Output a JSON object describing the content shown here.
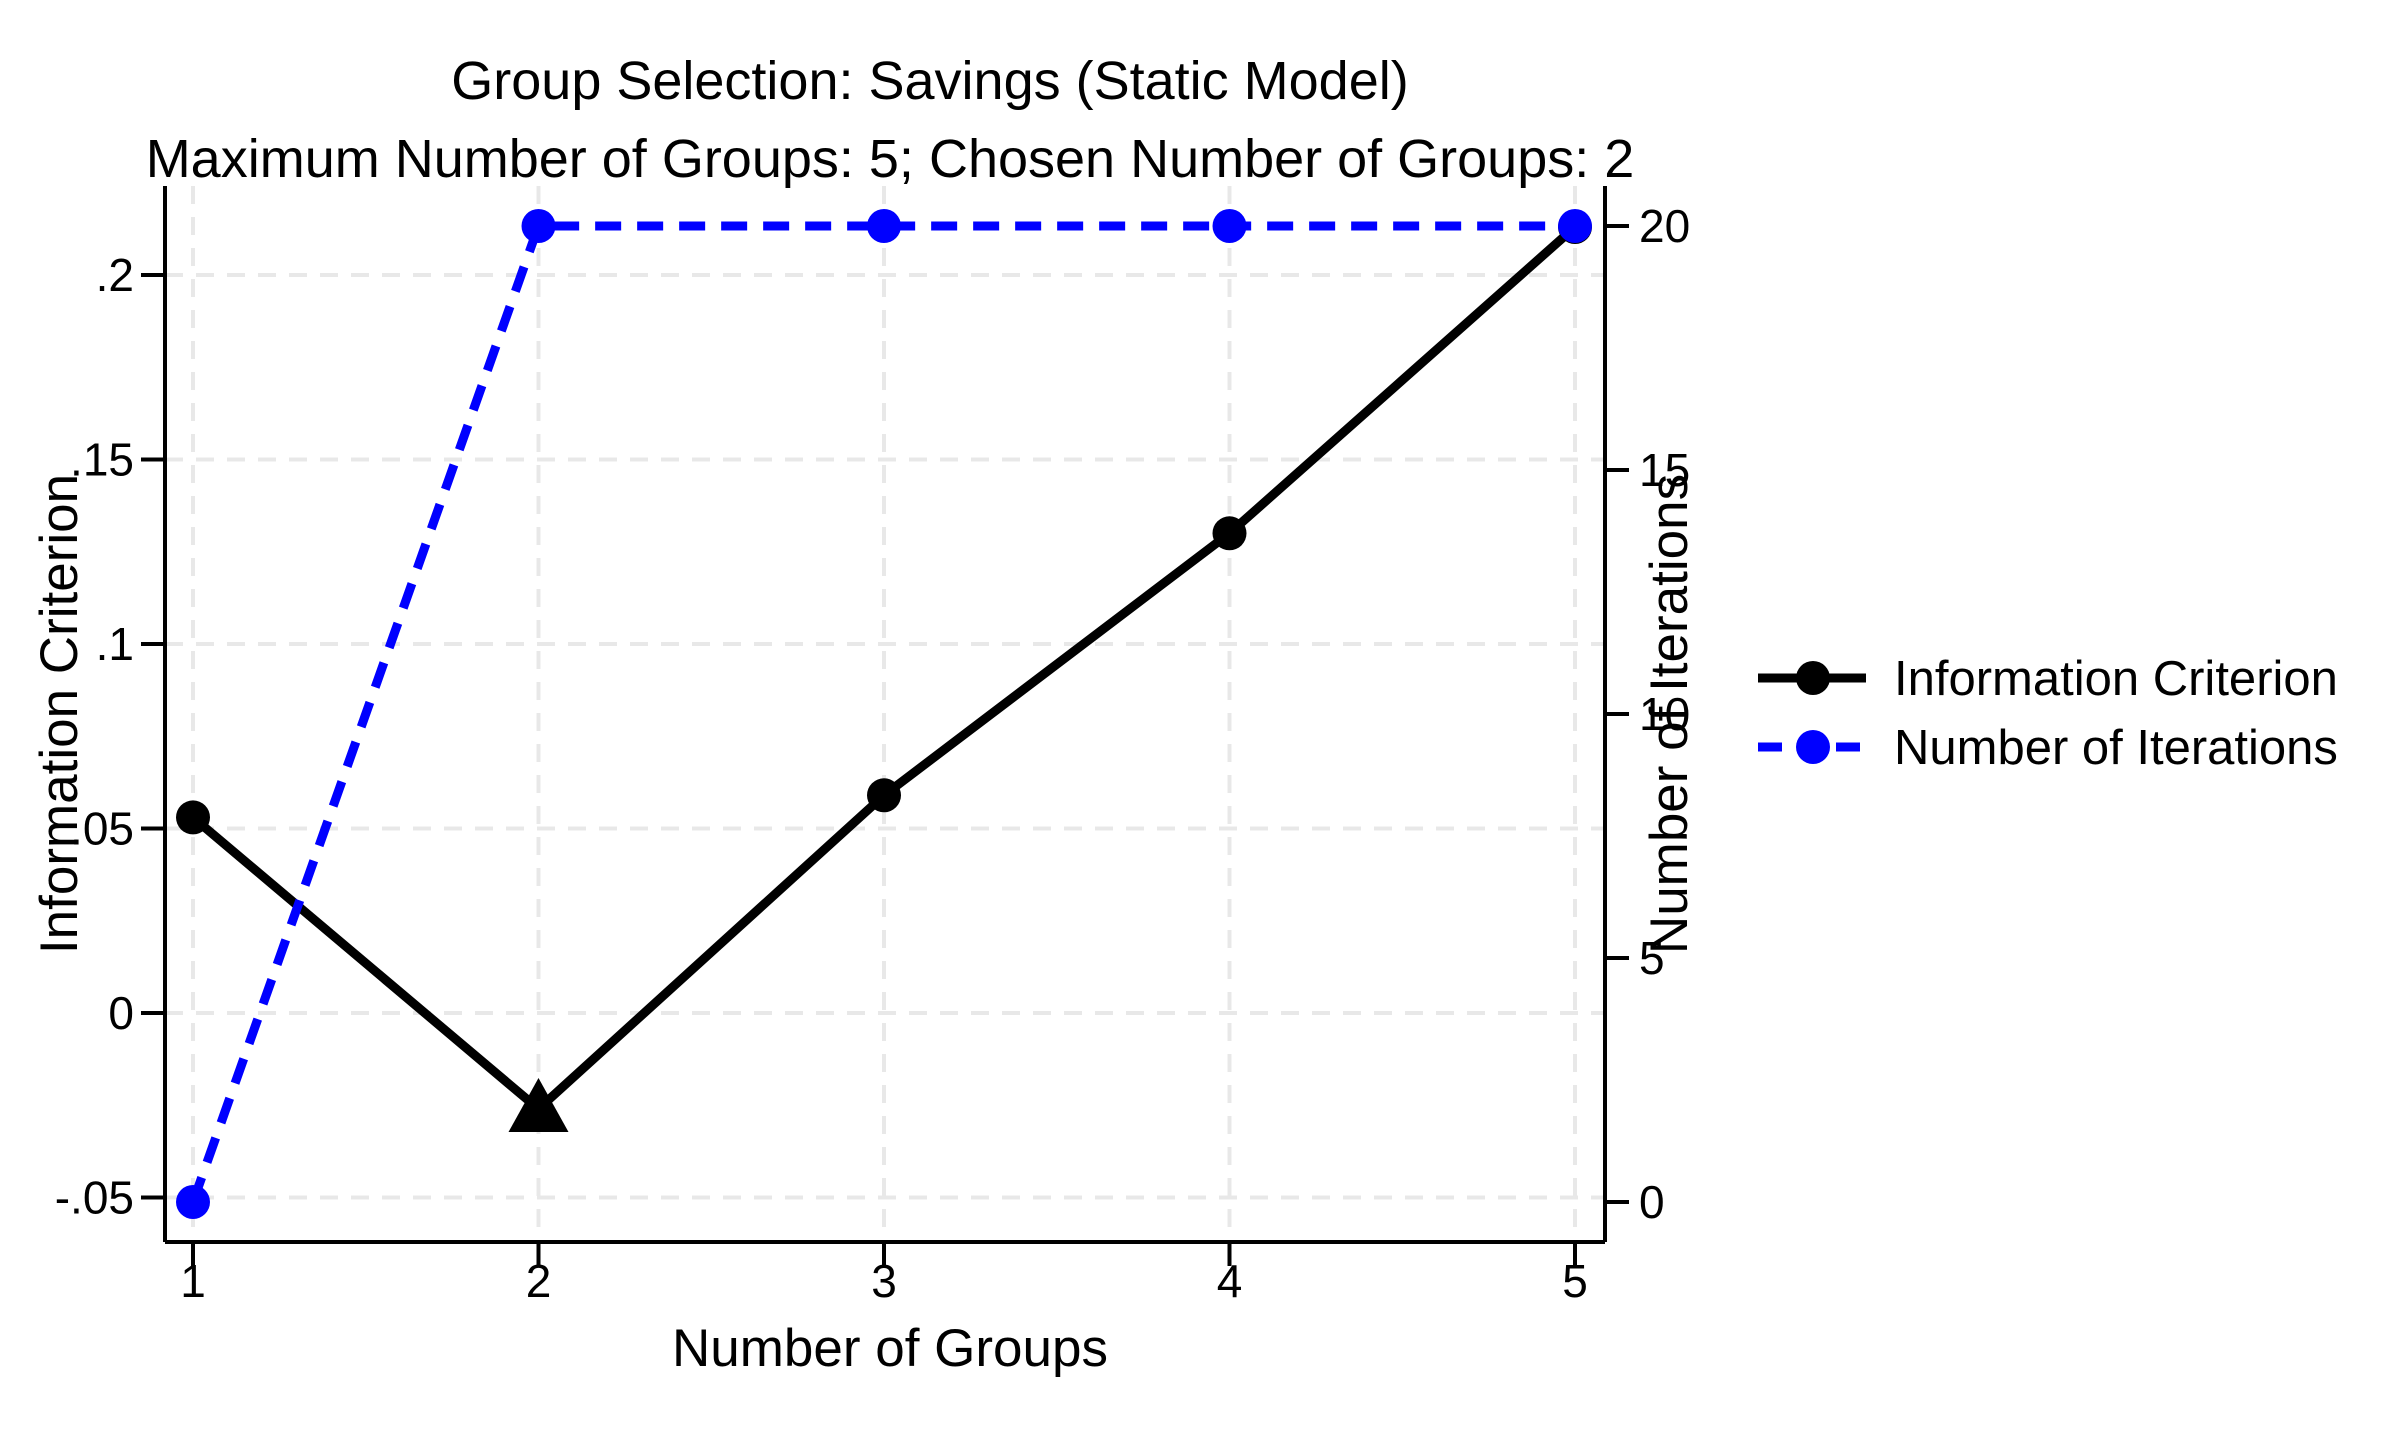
{
  "figure": {
    "background": "#ffffff",
    "text_color": "#000000"
  },
  "chart_data": {
    "type": "line",
    "title": "Group Selection: Savings (Static Model)",
    "subtitle": "Maximum Number of Groups: 5; Chosen Number of Groups: 2",
    "xlabel": "Number of Groups",
    "ylabel_left": "Information Criterion",
    "ylabel_right": "Number of Iterations",
    "x": [
      1,
      2,
      3,
      4,
      5
    ],
    "x_tick_labels": [
      "1",
      "2",
      "3",
      "4",
      "5"
    ],
    "left_axis": {
      "ticks": [
        -0.05,
        0,
        0.05,
        0.1,
        0.15,
        0.2
      ],
      "tick_labels": [
        "-.05",
        "0",
        ".05",
        ".1",
        ".15",
        ".2"
      ],
      "range": [
        -0.062,
        0.224
      ]
    },
    "right_axis": {
      "ticks": [
        0,
        5,
        10,
        15,
        20
      ],
      "tick_labels": [
        "0",
        "5",
        "10",
        "15",
        "20"
      ],
      "range": [
        -0.8,
        20.8
      ]
    },
    "grid": {
      "show": true,
      "color": "#e8e8e8",
      "style": "dashed",
      "vertical": true,
      "horizontal": true
    },
    "legend_position": "right-outside",
    "series": [
      {
        "name": "Information Criterion",
        "axis": "left",
        "color": "#000000",
        "line_style": "solid",
        "markers": [
          "circle",
          "triangle-up",
          "circle",
          "circle",
          "circle"
        ],
        "values": [
          0.053,
          -0.026,
          0.059,
          0.13,
          0.213
        ]
      },
      {
        "name": "Number of Iterations",
        "axis": "right",
        "color": "#0000ff",
        "line_style": "dashed",
        "markers": [
          "circle",
          "circle",
          "circle",
          "circle",
          "circle"
        ],
        "values": [
          0,
          20,
          20,
          20,
          20
        ]
      }
    ]
  }
}
